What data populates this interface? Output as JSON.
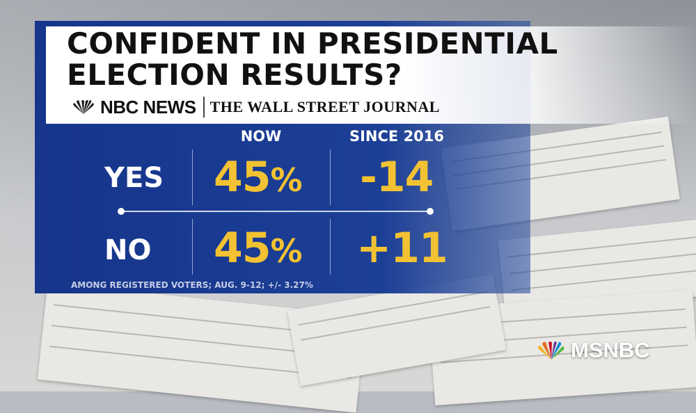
{
  "title": "CONFIDENT IN PRESIDENTIAL ELECTION RESULTS?",
  "sources": {
    "nbc": "NBC NEWS",
    "wsj": "THE WALL STREET JOURNAL"
  },
  "columns": {
    "now": "NOW",
    "since": "SINCE 2016"
  },
  "rows": [
    {
      "label": "YES",
      "now_value": "45",
      "now_unit": "%",
      "change": "-14"
    },
    {
      "label": "NO",
      "now_value": "45",
      "now_unit": "%",
      "change": "+11"
    }
  ],
  "footnote": "AMONG REGISTERED VOTERS; AUG. 9-12; +/- 3.27%",
  "network": "MSNBC",
  "colors": {
    "panel_blue": "#1c3f96",
    "value_gold": "#f2c232",
    "text_white": "#ffffff"
  },
  "icons": [
    "nbc-peacock-icon",
    "msnbc-peacock-icon"
  ]
}
